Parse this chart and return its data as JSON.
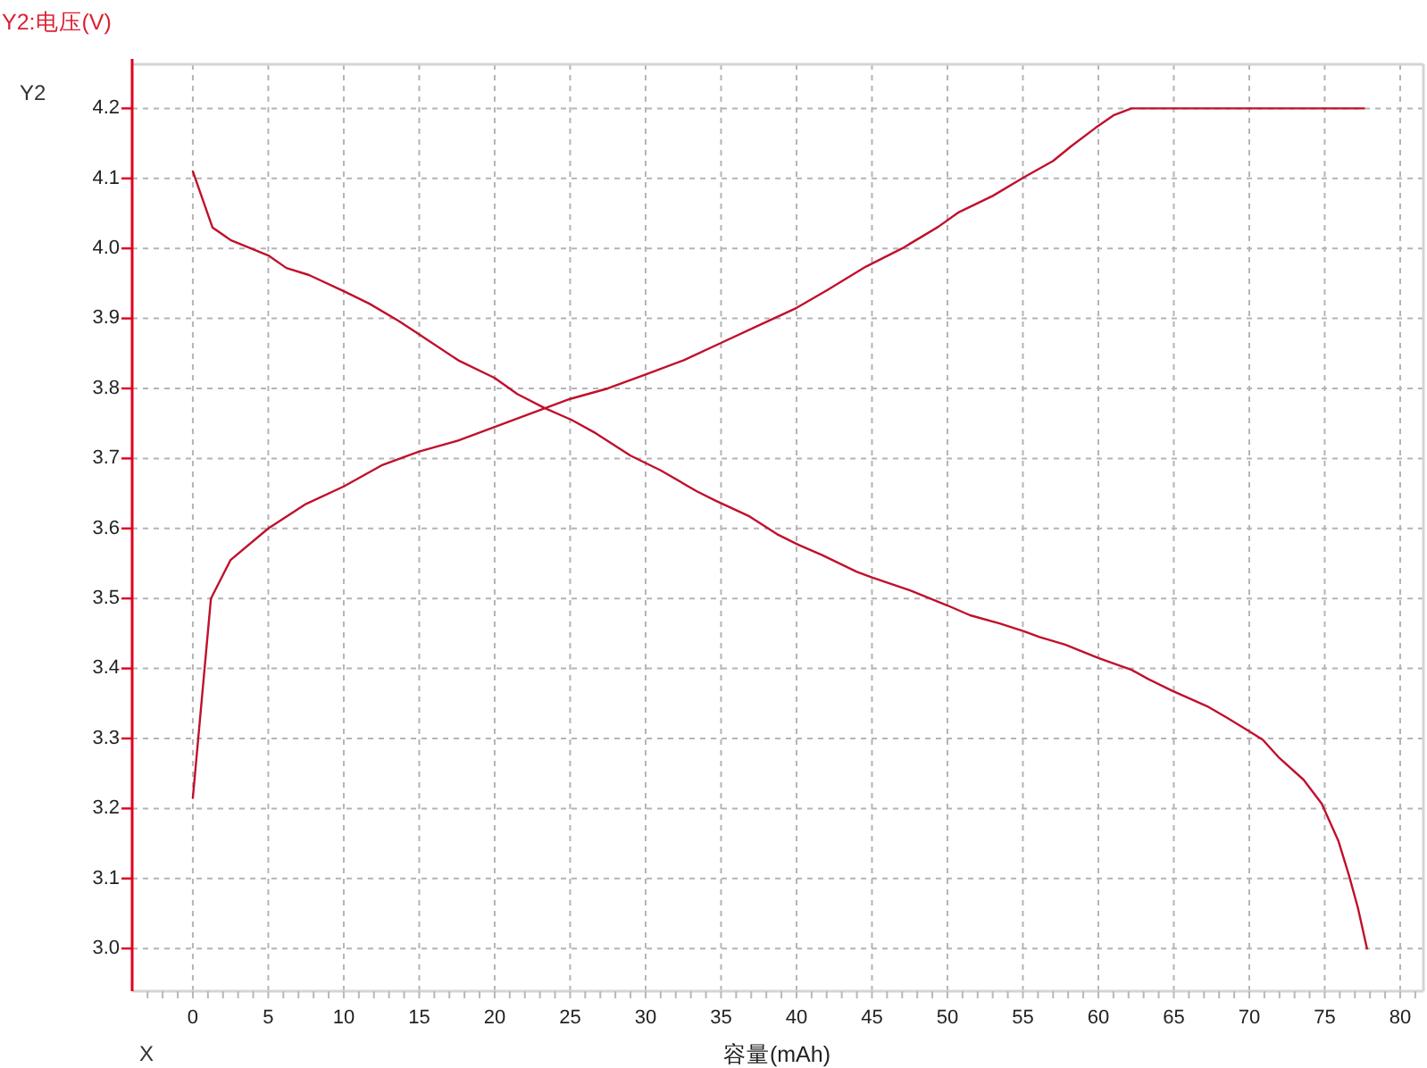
{
  "chart_data": {
    "type": "line",
    "ylabel": "Y2:电压(V)",
    "xlabel": "容量(mAh)",
    "annotations": [
      "Y2",
      "X"
    ],
    "xlim": [
      -4.02,
      81.54
    ],
    "ylim": [
      2.939,
      4.263
    ],
    "xticks": [
      {
        "value": -3,
        "label": null
      },
      {
        "value": -2,
        "label": null
      },
      {
        "value": -1,
        "label": null
      },
      0,
      {
        "value": 1,
        "label": null
      },
      {
        "value": 2,
        "label": null
      },
      {
        "value": 3,
        "label": null
      },
      {
        "value": 4,
        "label": null
      },
      5,
      {
        "value": 6,
        "label": null
      },
      {
        "value": 7,
        "label": null
      },
      {
        "value": 8,
        "label": null
      },
      {
        "value": 9,
        "label": null
      },
      10,
      {
        "value": 11,
        "label": null
      },
      {
        "value": 12,
        "label": null
      },
      {
        "value": 13,
        "label": null
      },
      {
        "value": 14,
        "label": null
      },
      15,
      {
        "value": 16,
        "label": null
      },
      {
        "value": 17,
        "label": null
      },
      {
        "value": 18,
        "label": null
      },
      {
        "value": 19,
        "label": null
      },
      20,
      {
        "value": 21,
        "label": null
      },
      {
        "value": 22,
        "label": null
      },
      {
        "value": 23,
        "label": null
      },
      {
        "value": 24,
        "label": null
      },
      25,
      {
        "value": 26,
        "label": null
      },
      {
        "value": 27,
        "label": null
      },
      {
        "value": 28,
        "label": null
      },
      {
        "value": 29,
        "label": null
      },
      30,
      {
        "value": 31,
        "label": null
      },
      {
        "value": 32,
        "label": null
      },
      {
        "value": 33,
        "label": null
      },
      {
        "value": 34,
        "label": null
      },
      35,
      {
        "value": 36,
        "label": null
      },
      {
        "value": 37,
        "label": null
      },
      {
        "value": 38,
        "label": null
      },
      {
        "value": 39,
        "label": null
      },
      40,
      {
        "value": 41,
        "label": null
      },
      {
        "value": 42,
        "label": null
      },
      {
        "value": 43,
        "label": null
      },
      {
        "value": 44,
        "label": null
      },
      45,
      {
        "value": 46,
        "label": null
      },
      {
        "value": 47,
        "label": null
      },
      {
        "value": 48,
        "label": null
      },
      {
        "value": 49,
        "label": null
      },
      50,
      {
        "value": 51,
        "label": null
      },
      {
        "value": 52,
        "label": null
      },
      {
        "value": 53,
        "label": null
      },
      {
        "value": 54,
        "label": null
      },
      55,
      {
        "value": 56,
        "label": null
      },
      {
        "value": 57,
        "label": null
      },
      {
        "value": 58,
        "label": null
      },
      {
        "value": 59,
        "label": null
      },
      60,
      {
        "value": 61,
        "label": null
      },
      {
        "value": 62,
        "label": null
      },
      {
        "value": 63,
        "label": null
      },
      {
        "value": 64,
        "label": null
      },
      65,
      {
        "value": 66,
        "label": null
      },
      {
        "value": 67,
        "label": null
      },
      {
        "value": 68,
        "label": null
      },
      {
        "value": 69,
        "label": null
      },
      70,
      {
        "value": 71,
        "label": null
      },
      {
        "value": 72,
        "label": null
      },
      {
        "value": 73,
        "label": null
      },
      {
        "value": 74,
        "label": null
      },
      75,
      {
        "value": 76,
        "label": null
      },
      {
        "value": 77,
        "label": null
      },
      {
        "value": 78,
        "label": null
      },
      {
        "value": 79,
        "label": null
      },
      80,
      {
        "value": 81,
        "label": null
      }
    ],
    "yticks": [
      {
        "value": 3,
        "label": "3.0"
      },
      3.1,
      3.2,
      3.3,
      3.4,
      3.5,
      3.6,
      3.7,
      3.8,
      3.9,
      {
        "value": 4,
        "label": "4.0"
      },
      4.1,
      4.2
    ],
    "grid": true,
    "series": [
      {
        "color": "#c0102c",
        "x": [
          0,
          1.2,
          2.5,
          5,
          7.5,
          10,
          12.5,
          15,
          17.5,
          20,
          22.5,
          25,
          27.5,
          30,
          32.5,
          35,
          37.5,
          40,
          42,
          44.6,
          47,
          49.4,
          50.7,
          53,
          55.1,
          57,
          58.2,
          59.8,
          61,
          62.2,
          77.6
        ],
        "values": [
          3.215,
          3.5,
          3.555,
          3.6,
          3.635,
          3.66,
          3.69,
          3.71,
          3.725,
          3.745,
          3.765,
          3.785,
          3.8,
          3.82,
          3.84,
          3.865,
          3.89,
          3.915,
          3.94,
          3.974,
          4.0,
          4.031,
          4.051,
          4.075,
          4.102,
          4.125,
          4.146,
          4.172,
          4.19,
          4.2,
          4.2
        ]
      },
      {
        "color": "#c0102c",
        "x": [
          0,
          1.3,
          2.5,
          5,
          6.2,
          7.7,
          10.1,
          11.7,
          13.6,
          14.8,
          17.6,
          20,
          21.5,
          23.3,
          25.1,
          26.7,
          29,
          31,
          33.4,
          34.6,
          36.9,
          38.7,
          40.1,
          41.7,
          44,
          45,
          47.6,
          50,
          51.5,
          53.5,
          55.1,
          56.1,
          57.8,
          60,
          62.2,
          63.3,
          64.9,
          67.3,
          68.5,
          70.1,
          70.9,
          72,
          73.6,
          74.8,
          75.9,
          76.6,
          77.2,
          77.8
        ],
        "values": [
          4.11,
          4.03,
          4.012,
          3.99,
          3.972,
          3.962,
          3.938,
          3.921,
          3.897,
          3.88,
          3.84,
          3.815,
          3.792,
          3.772,
          3.755,
          3.736,
          3.704,
          3.683,
          3.653,
          3.64,
          3.617,
          3.592,
          3.577,
          3.562,
          3.538,
          3.53,
          3.511,
          3.49,
          3.476,
          3.464,
          3.453,
          3.445,
          3.434,
          3.415,
          3.398,
          3.385,
          3.368,
          3.345,
          3.33,
          3.309,
          3.298,
          3.272,
          3.241,
          3.207,
          3.154,
          3.105,
          3.058,
          3.0
        ]
      }
    ]
  }
}
